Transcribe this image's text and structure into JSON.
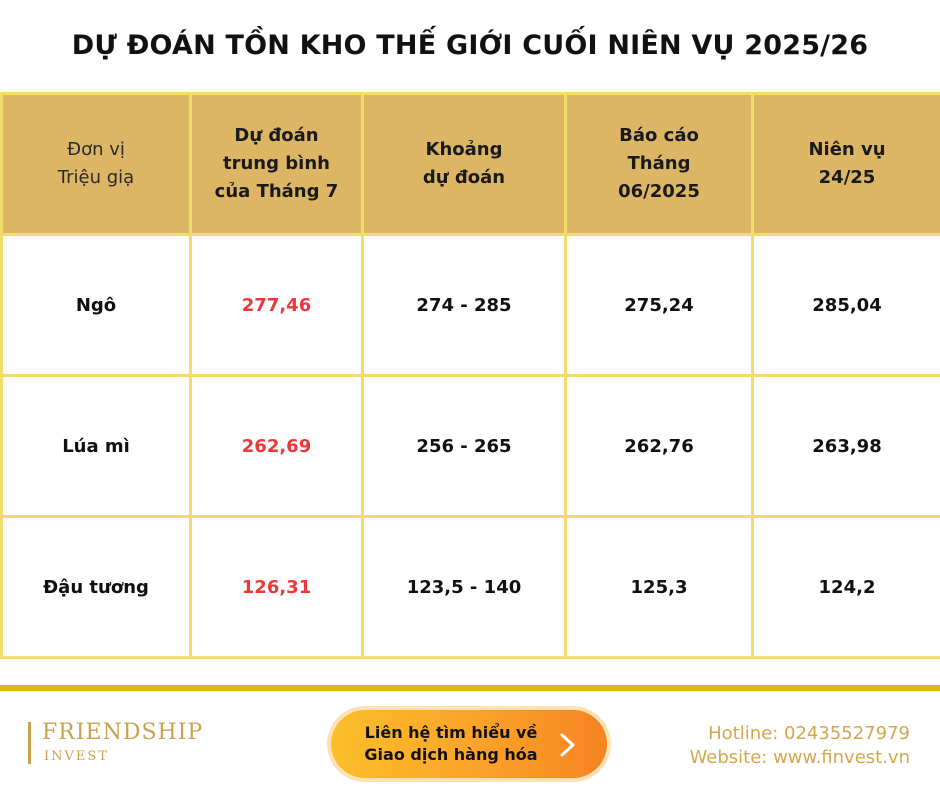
{
  "title": "DỰ ĐOÁN TỒN KHO THẾ GIỚI CUỐI NIÊN VỤ 2025/26",
  "table": {
    "headers": {
      "unit": [
        "Đơn vị",
        "Triệu giạ"
      ],
      "avg_forecast": [
        "Dự đoán",
        "trung bình",
        "của Tháng 7"
      ],
      "range": [
        "Khoảng",
        "dự đoán"
      ],
      "report": [
        "Báo cáo",
        "Tháng",
        "06/2025"
      ],
      "season": [
        "Niên vụ",
        "24/25"
      ]
    },
    "rows": [
      {
        "commodity": "Ngô",
        "avg_forecast": "277,46",
        "range": "274 - 285",
        "report": "275,24",
        "season": "285,04"
      },
      {
        "commodity": "Lúa mì",
        "avg_forecast": "262,69",
        "range": "256 - 265",
        "report": "262,76",
        "season": "263,98"
      },
      {
        "commodity": "Đậu tương",
        "avg_forecast": "126,31",
        "range": "123,5 - 140",
        "report": "125,3",
        "season": "124,2"
      }
    ]
  },
  "footer": {
    "logo_name": "FRIENDSHIP",
    "logo_sub": "INVEST",
    "cta_line1": "Liên hệ tìm hiểu về",
    "cta_line2": "Giao dịch hàng hóa",
    "hotline": "Hotline: 02435527979",
    "website": "Website: www.finvest.vn"
  },
  "colors": {
    "header_bg": "#dcb565",
    "grid": "#f2dc6c",
    "highlight": "#e8393b",
    "gold_bar": "#e2b70f",
    "accent_text": "#d4a74f"
  },
  "icons": {
    "cta_arrow": "chevron-right-icon"
  }
}
